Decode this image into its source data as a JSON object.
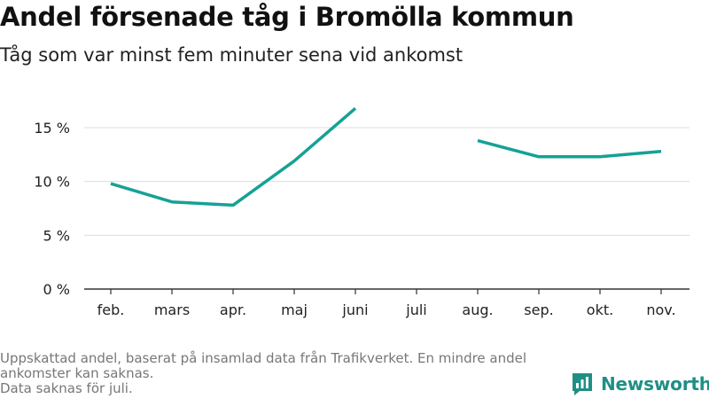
{
  "header": {
    "title": "Andel försenade tåg i Bromölla kommun",
    "subtitle": "Tåg som var minst fem minuter sena vid ankomst"
  },
  "footnote": {
    "lines": [
      "Uppskattad andel, baserat på insamlad data från Trafikverket. En mindre andel",
      "ankomster kan saknas.",
      "Data saknas för juli."
    ]
  },
  "brand": {
    "name": "Newsworthy",
    "color": "#1f8f86",
    "icon": "newsworthy-logo-icon"
  },
  "colors": {
    "line": "#16a196",
    "grid": "#dddddd",
    "axis": "#333333"
  },
  "chart_data": {
    "type": "line",
    "title": "Andel försenade tåg i Bromölla kommun",
    "subtitle": "Tåg som var minst fem minuter sena vid ankomst",
    "categories": [
      "feb.",
      "mars",
      "apr.",
      "maj",
      "juni",
      "juli",
      "aug.",
      "sep.",
      "okt.",
      "nov."
    ],
    "series": [
      {
        "values": [
          9.8,
          8.1,
          7.8,
          11.9,
          16.8,
          null,
          13.8,
          12.3,
          12.3,
          12.8
        ]
      }
    ],
    "y_ticks": [
      0,
      5,
      10,
      15
    ],
    "y_tick_labels": [
      "0 %",
      "5 %",
      "10 %",
      "15 %"
    ],
    "ylim": [
      0,
      17.5
    ],
    "grid": true,
    "xlabel": "",
    "ylabel": ""
  }
}
